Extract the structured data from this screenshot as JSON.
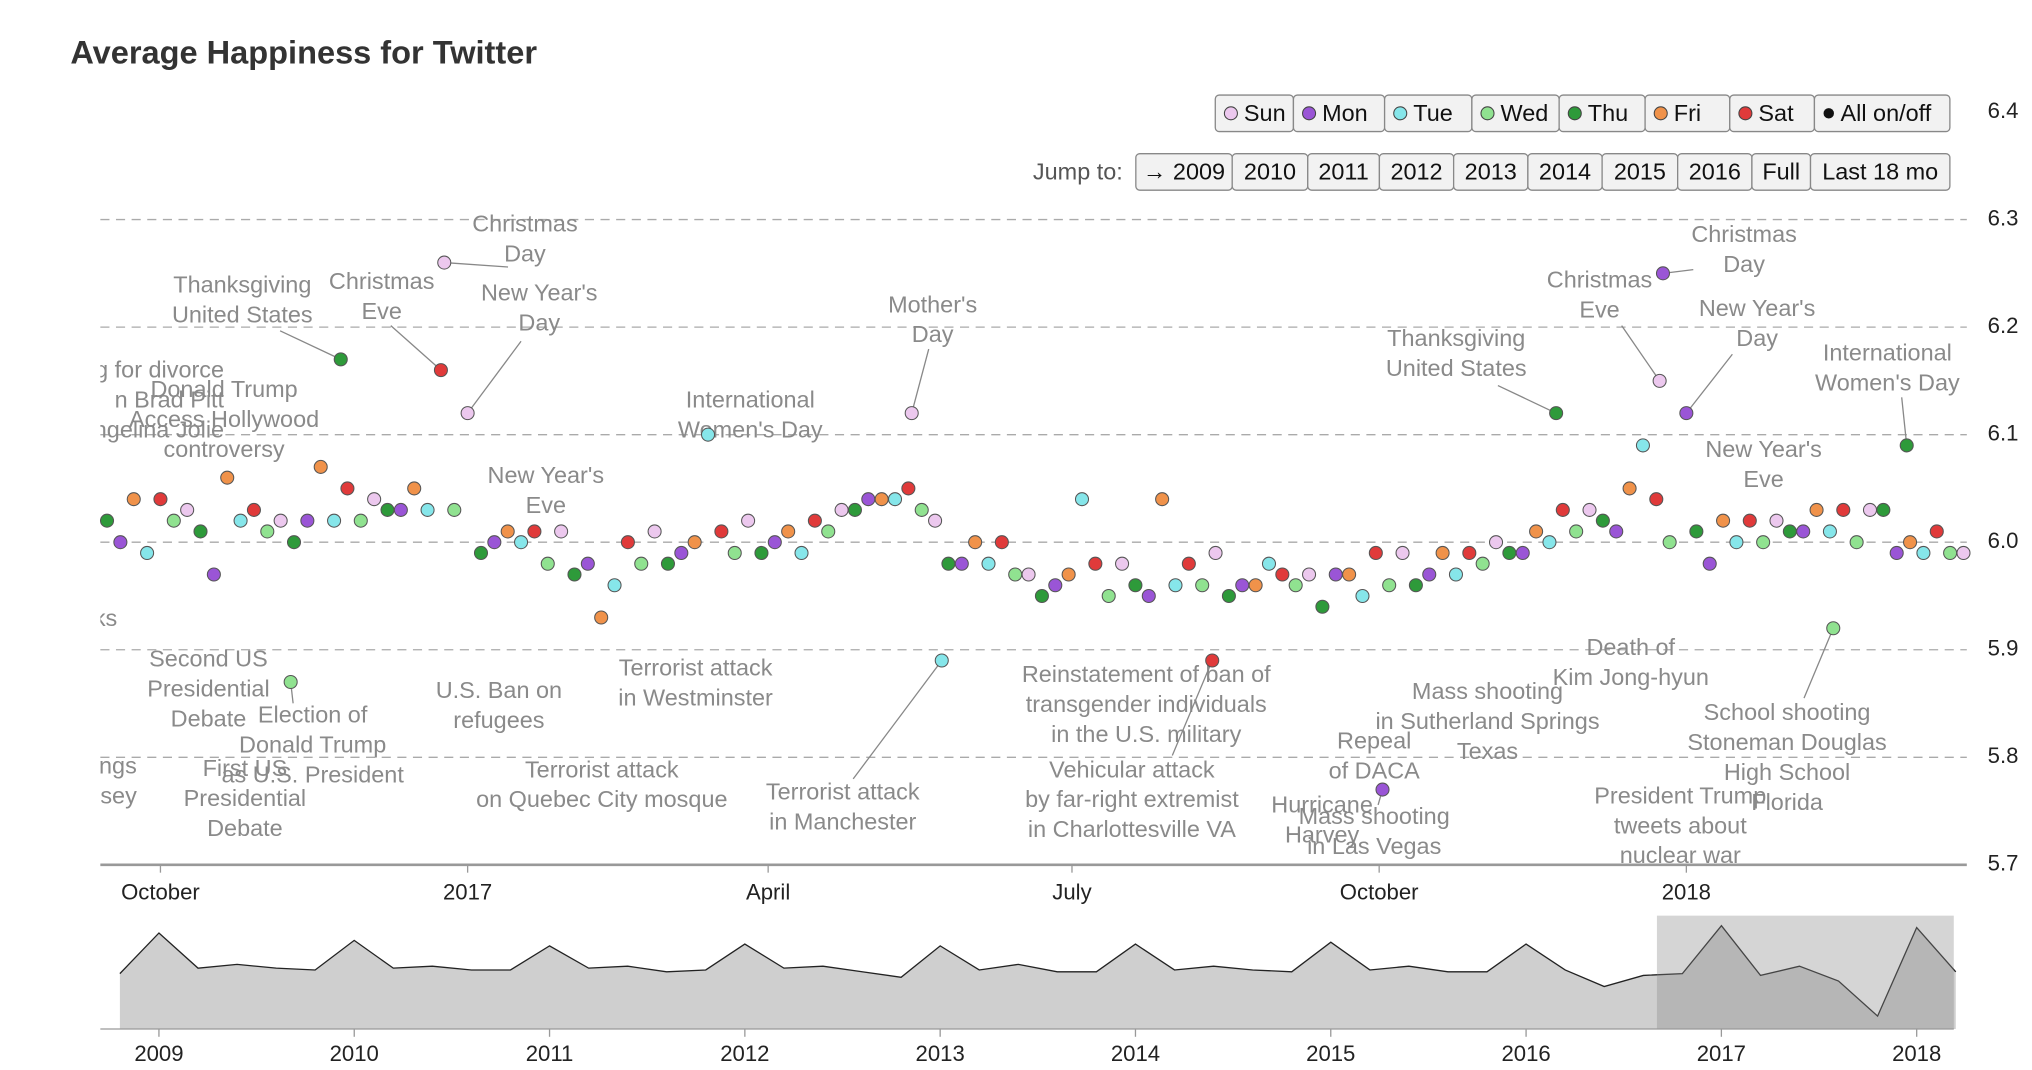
{
  "chart_data": {
    "type": "scatter",
    "title": "Average Happiness for Twitter",
    "xlim": [
      -18,
      541
    ],
    "xticks": [
      {
        "value": 0,
        "label": "October"
      },
      {
        "value": 92,
        "label": "2017"
      },
      {
        "value": 182,
        "label": "April"
      },
      {
        "value": 273,
        "label": "July"
      },
      {
        "value": 365,
        "label": "October"
      },
      {
        "value": 457,
        "label": "2018"
      }
    ],
    "ylim": [
      5.7,
      6.4
    ],
    "yticks": [
      5.7,
      5.8,
      5.9,
      {
        "value": 6,
        "label": "6.0"
      },
      6.1,
      6.2,
      6.3,
      6.4
    ],
    "grid": true,
    "series": [
      {
        "name": "Sun",
        "color": "#ecc8ee",
        "x": [
          8,
          36,
          64,
          85,
          92,
          120,
          148,
          176,
          204,
          225,
          232,
          260,
          288,
          316,
          344,
          372,
          400,
          428,
          449,
          484,
          512,
          540
        ],
        "values": [
          6.03,
          6.02,
          6.04,
          6.26,
          6.12,
          6.01,
          6.01,
          6.02,
          6.03,
          6.12,
          6.02,
          5.97,
          5.98,
          5.99,
          5.97,
          5.99,
          6.0,
          6.03,
          6.15,
          6.02,
          6.03,
          5.99
        ]
      },
      {
        "name": "Mon",
        "color": "#9a55d6",
        "x": [
          -12,
          16,
          44,
          72,
          100,
          128,
          156,
          184,
          212,
          240,
          268,
          296,
          324,
          352,
          366,
          380,
          408,
          436,
          450,
          457,
          464,
          492,
          520
        ],
        "values": [
          6.0,
          5.97,
          6.02,
          6.03,
          6.0,
          5.98,
          5.99,
          6.0,
          6.04,
          5.98,
          5.96,
          5.95,
          5.96,
          5.97,
          5.77,
          5.97,
          5.99,
          6.01,
          6.25,
          6.12,
          5.98,
          6.01,
          5.99
        ]
      },
      {
        "name": "Tue",
        "color": "#86e6ea",
        "x": [
          -4,
          24,
          52,
          80,
          108,
          136,
          164,
          192,
          220,
          234,
          248,
          276,
          304,
          332,
          360,
          388,
          416,
          444,
          472,
          500,
          528
        ],
        "values": [
          5.99,
          6.02,
          6.02,
          6.03,
          6.0,
          5.96,
          6.1,
          5.99,
          6.04,
          5.89,
          5.98,
          6.04,
          5.96,
          5.98,
          5.95,
          5.97,
          6.0,
          6.09,
          6.0,
          6.01,
          5.99
        ]
      },
      {
        "name": "Wed",
        "color": "#90e290",
        "x": [
          4,
          32,
          39,
          60,
          88,
          116,
          144,
          172,
          200,
          228,
          256,
          284,
          312,
          340,
          368,
          396,
          424,
          452,
          480,
          501,
          508,
          536
        ],
        "values": [
          6.02,
          6.01,
          5.87,
          6.02,
          6.03,
          5.98,
          5.98,
          5.99,
          6.01,
          6.03,
          5.97,
          5.95,
          5.96,
          5.96,
          5.96,
          5.98,
          6.01,
          6.0,
          6.0,
          5.92,
          6.0,
          5.99
        ]
      },
      {
        "name": "Thu",
        "color": "#2e9a3a",
        "x": [
          -16,
          12,
          40,
          54,
          68,
          96,
          124,
          152,
          180,
          208,
          236,
          264,
          292,
          320,
          348,
          376,
          404,
          418,
          432,
          460,
          488,
          516,
          523
        ],
        "values": [
          6.02,
          6.01,
          6.0,
          6.17,
          6.03,
          5.99,
          5.97,
          5.98,
          5.99,
          6.03,
          5.98,
          5.95,
          5.96,
          5.95,
          5.94,
          5.96,
          5.99,
          6.12,
          6.02,
          6.01,
          6.01,
          6.03,
          6.09
        ]
      },
      {
        "name": "Fri",
        "color": "#f0924a",
        "x": [
          -8,
          20,
          48,
          76,
          104,
          132,
          160,
          188,
          216,
          244,
          272,
          300,
          328,
          356,
          384,
          412,
          440,
          468,
          496,
          524
        ],
        "values": [
          6.04,
          6.06,
          6.07,
          6.05,
          6.01,
          5.93,
          6.0,
          6.01,
          6.04,
          6.0,
          5.97,
          6.04,
          5.96,
          5.97,
          5.99,
          6.01,
          6.05,
          6.02,
          6.03,
          6.0
        ]
      },
      {
        "name": "Sat",
        "color": "#e03a3a",
        "x": [
          0,
          28,
          56,
          84,
          112,
          140,
          168,
          196,
          224,
          252,
          280,
          308,
          315,
          336,
          364,
          392,
          420,
          448,
          476,
          504,
          532
        ],
        "values": [
          6.04,
          6.03,
          6.05,
          6.16,
          6.01,
          6.0,
          6.01,
          6.02,
          6.05,
          6.0,
          5.98,
          5.98,
          5.89,
          5.97,
          5.99,
          5.99,
          6.03,
          6.04,
          6.02,
          6.03,
          6.01
        ]
      }
    ],
    "toggle_all": "All on/off",
    "jump_label": "Jump to:",
    "jump_buttons": [
      "→ 2009",
      "2010",
      "2011",
      "2012",
      "2013",
      "2014",
      "2015",
      "2016",
      "Full",
      "Last 18 mo"
    ],
    "annotations": [
      {
        "lines": [
          "g for divorce",
          "n Brad Pitt",
          "ngelina Jolie"
        ]
      },
      {
        "lines": [
          "Donald Trump",
          "Access Hollywood",
          "controversy"
        ]
      },
      {
        "lines": [
          "ks"
        ]
      },
      {
        "lines": [
          "ngs",
          "w Jersey"
        ]
      },
      {
        "lines": [
          "Second US",
          "Presidential",
          "Debate"
        ]
      },
      {
        "lines": [
          "Election of",
          "Donald Trump",
          "as U.S. President"
        ]
      },
      {
        "lines": [
          "First US",
          "Presidential",
          "Debate"
        ]
      },
      {
        "lines": [
          "Thanksgiving",
          "United States"
        ]
      },
      {
        "lines": [
          "Christmas",
          "Eve"
        ]
      },
      {
        "lines": [
          "Christmas",
          "Day"
        ]
      },
      {
        "lines": [
          "New Year's",
          "Day"
        ]
      },
      {
        "lines": [
          "New Year's",
          "Eve"
        ]
      },
      {
        "lines": [
          "U.S. Ban on",
          "refugees"
        ]
      },
      {
        "lines": [
          "Terrorist attack",
          "on Quebec City mosque"
        ]
      },
      {
        "lines": [
          "International",
          "Women's Day"
        ]
      },
      {
        "lines": [
          "Terrorist attack",
          "in Westminster"
        ]
      },
      {
        "lines": [
          "Mother's",
          "Day"
        ]
      },
      {
        "lines": [
          "Terrorist attack",
          "in Manchester"
        ]
      },
      {
        "lines": [
          "Reinstatement of ban of",
          "transgender individuals",
          "in the U.S. military"
        ]
      },
      {
        "lines": [
          "Vehicular attack",
          "by far-right extremist",
          "in Charlottesville VA"
        ]
      },
      {
        "lines": [
          "Hurricane",
          "Harvey"
        ]
      },
      {
        "lines": [
          "Mass shooting",
          "in Las Vegas"
        ]
      },
      {
        "lines": [
          "Repeal",
          "of DACA"
        ]
      },
      {
        "lines": [
          "Mass shooting",
          "in Sutherland Springs",
          "Texas"
        ]
      },
      {
        "lines": [
          "Thanksgiving",
          "United States"
        ]
      },
      {
        "lines": [
          "Christmas",
          "Eve"
        ]
      },
      {
        "lines": [
          "Christmas",
          "Day"
        ]
      },
      {
        "lines": [
          "New Year's",
          "Day"
        ]
      },
      {
        "lines": [
          "New Year's",
          "Eve"
        ]
      },
      {
        "lines": [
          "Death of",
          "Kim Jong-hyun"
        ]
      },
      {
        "lines": [
          "President Trump",
          "tweets about",
          "nuclear war"
        ]
      },
      {
        "lines": [
          "School shooting",
          "Stoneman Douglas",
          "High School",
          "Florida"
        ]
      },
      {
        "lines": [
          "International",
          "Women's Day"
        ]
      }
    ],
    "overview": {
      "type": "area",
      "color": "#cfcfcf",
      "xlim": [
        2008.7,
        2018.19
      ],
      "ylim": [
        5.7,
        6.3
      ],
      "xticks": [
        2009,
        2010,
        2011,
        2012,
        2013,
        2014,
        2015,
        2016,
        2017,
        2018
      ],
      "window": [
        2016.67,
        2018.19
      ],
      "x": [
        2008.8,
        2009.0,
        2009.2,
        2009.4,
        2009.6,
        2009.8,
        2010.0,
        2010.2,
        2010.4,
        2010.6,
        2010.8,
        2011.0,
        2011.2,
        2011.4,
        2011.6,
        2011.8,
        2012.0,
        2012.2,
        2012.4,
        2012.6,
        2012.8,
        2013.0,
        2013.2,
        2013.4,
        2013.6,
        2013.8,
        2014.0,
        2014.2,
        2014.4,
        2014.6,
        2014.8,
        2015.0,
        2015.2,
        2015.4,
        2015.6,
        2015.8,
        2016.0,
        2016.2,
        2016.4,
        2016.6,
        2016.8,
        2017.0,
        2017.2,
        2017.4,
        2017.6,
        2017.8,
        2018.0,
        2018.2
      ],
      "values": [
        6.0,
        6.22,
        6.03,
        6.05,
        6.03,
        6.02,
        6.18,
        6.03,
        6.04,
        6.02,
        6.02,
        6.15,
        6.03,
        6.04,
        6.01,
        6.02,
        6.16,
        6.03,
        6.04,
        6.01,
        5.98,
        6.15,
        6.02,
        6.05,
        6.01,
        6.01,
        6.16,
        6.02,
        6.04,
        6.02,
        6.01,
        6.17,
        6.02,
        6.04,
        6.01,
        6.01,
        6.16,
        6.02,
        5.93,
        5.99,
        6.0,
        6.26,
        5.99,
        6.04,
        5.96,
        5.77,
        6.25,
        6.01
      ]
    }
  }
}
